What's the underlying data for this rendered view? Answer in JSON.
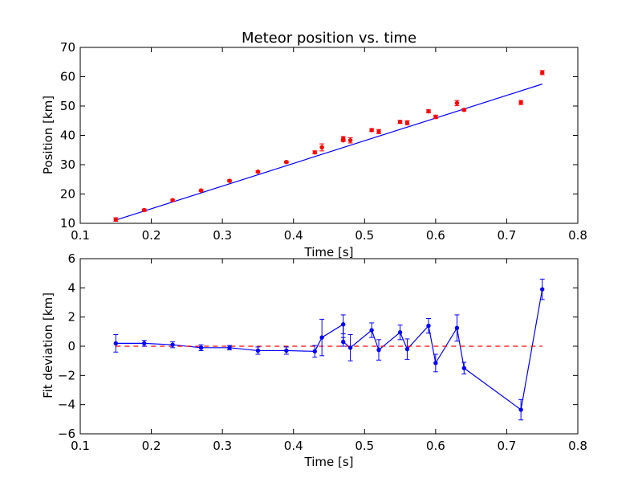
{
  "chart_data": [
    {
      "type": "scatter",
      "title": "Meteor position vs. time",
      "xlabel": "Time [s]",
      "ylabel": "Position [km]",
      "xlim": [
        0.1,
        0.8
      ],
      "ylim": [
        10,
        70
      ],
      "xticks": [
        "0.1",
        "0.2",
        "0.3",
        "0.4",
        "0.5",
        "0.6",
        "0.7",
        "0.8"
      ],
      "yticks": [
        "10",
        "20",
        "30",
        "40",
        "50",
        "60",
        "70"
      ],
      "grid": false,
      "colors": {
        "points": "#ff0000",
        "fit": "#0000ff"
      },
      "series": [
        {
          "kind": "errorbar-points",
          "x": [
            0.15,
            0.19,
            0.23,
            0.27,
            0.31,
            0.35,
            0.39,
            0.43,
            0.44,
            0.47,
            0.47,
            0.48,
            0.51,
            0.52,
            0.55,
            0.56,
            0.59,
            0.6,
            0.63,
            0.64,
            0.72,
            0.75
          ],
          "y": [
            11.3,
            14.5,
            17.9,
            21.2,
            24.5,
            27.6,
            30.9,
            34.2,
            35.9,
            38.9,
            38.3,
            38.3,
            41.8,
            41.3,
            44.6,
            44.3,
            48.2,
            46.3,
            51.0,
            48.7,
            51.2,
            61.4
          ],
          "yerr": [
            0.6,
            0.4,
            0.3,
            0.3,
            0.3,
            0.3,
            0.3,
            0.5,
            1.2,
            0.7,
            0.3,
            0.9,
            0.5,
            0.7,
            0.5,
            0.7,
            0.5,
            0.6,
            0.9,
            0.4,
            0.7,
            0.7
          ]
        },
        {
          "kind": "fit-line",
          "x": [
            0.15,
            0.75
          ],
          "y": [
            11.1,
            57.5
          ]
        }
      ]
    },
    {
      "type": "line",
      "title": "",
      "xlabel": "Time [s]",
      "ylabel": "Fit deviation [km]",
      "xlim": [
        0.1,
        0.8
      ],
      "ylim": [
        -6,
        6
      ],
      "xticks": [
        "0.1",
        "0.2",
        "0.3",
        "0.4",
        "0.5",
        "0.6",
        "0.7",
        "0.8"
      ],
      "yticks": [
        "−6",
        "−4",
        "−2",
        "0",
        "2",
        "4",
        "6"
      ],
      "grid": false,
      "colors": {
        "residuals": "#0000ff",
        "zero": "#ff0000"
      },
      "series": [
        {
          "kind": "errorbar-line",
          "x": [
            0.15,
            0.19,
            0.23,
            0.27,
            0.31,
            0.35,
            0.39,
            0.43,
            0.44,
            0.47,
            0.47,
            0.48,
            0.51,
            0.52,
            0.55,
            0.56,
            0.59,
            0.6,
            0.63,
            0.64,
            0.72,
            0.75
          ],
          "y": [
            0.2,
            0.2,
            0.1,
            -0.1,
            -0.1,
            -0.3,
            -0.3,
            -0.35,
            0.6,
            1.5,
            0.3,
            -0.1,
            1.1,
            -0.25,
            0.95,
            -0.2,
            1.4,
            -1.15,
            1.25,
            -1.5,
            -4.35,
            3.9
          ],
          "yerr": [
            0.6,
            0.2,
            0.2,
            0.2,
            0.15,
            0.25,
            0.25,
            0.4,
            1.25,
            0.65,
            0.3,
            0.9,
            0.5,
            0.7,
            0.5,
            0.7,
            0.5,
            0.6,
            0.9,
            0.4,
            0.7,
            0.7
          ]
        },
        {
          "kind": "zero-line",
          "x": [
            0.15,
            0.75
          ],
          "y": [
            0,
            0
          ]
        }
      ]
    }
  ]
}
